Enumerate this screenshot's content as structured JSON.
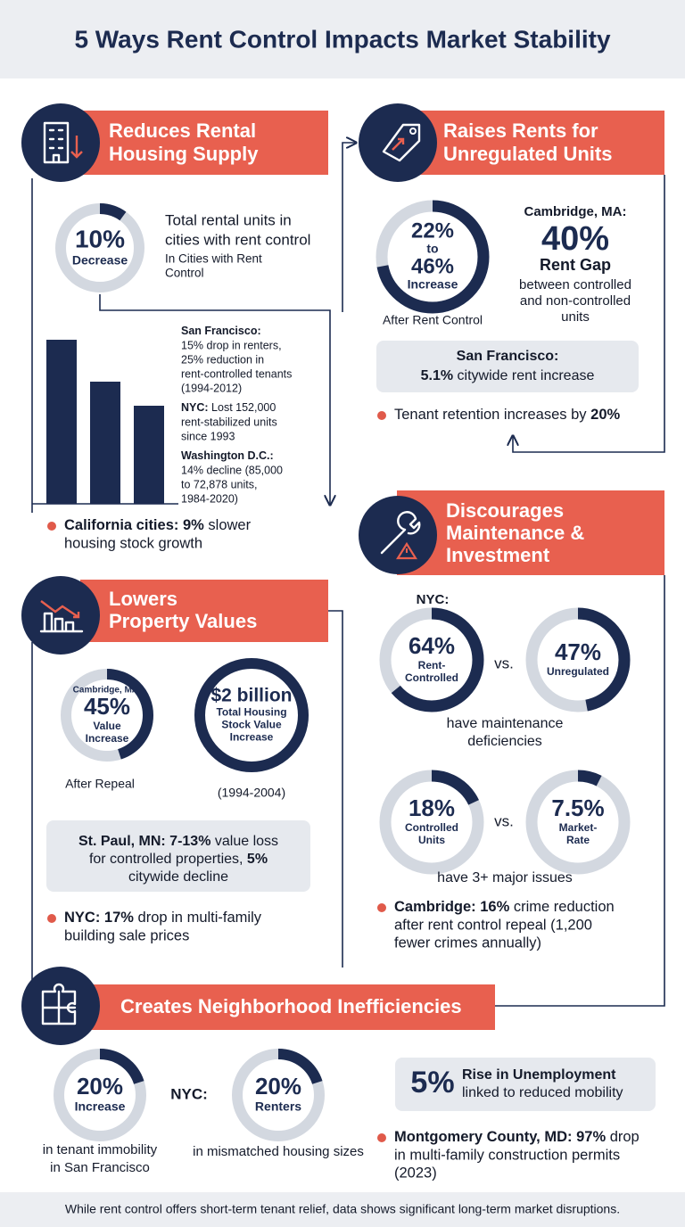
{
  "title": "5 Ways Rent Control Impacts Market Stability",
  "supply": {
    "heading": [
      "Reduces Rental",
      "Housing Supply"
    ],
    "ring": {
      "value": 10,
      "label": "10%",
      "caption": [
        "Decrease"
      ]
    },
    "note": [
      "Total rental units in",
      "cities with rent control"
    ],
    "subnote": [
      "In Cities with Rent",
      "Control"
    ],
    "facts": [
      [
        {
          "bold": "San Francisco:"
        },
        "15% drop in renters,",
        "25% reduction in",
        "rent-controlled tenants",
        "(1994-2012)"
      ],
      [
        {
          "bold": "NYC:",
          "rest": " Lost 152,000"
        },
        "rent-stabilized units",
        "since 1993"
      ],
      [
        {
          "bold": "Washington D.C.:"
        },
        "14% decline (85,000",
        "to 72,878 units,",
        "1984-2020)"
      ]
    ],
    "bullet": [
      {
        "bold": "California cities: 9%",
        "rest": " slower"
      },
      "housing stock growth"
    ]
  },
  "rents": {
    "heading": [
      "Raises Rents for",
      "Unregulated Units"
    ],
    "ring": {
      "range": [
        "22%",
        "to",
        "46%"
      ],
      "caption": [
        "Increase"
      ]
    },
    "ring_note": "After Rent Control",
    "city": "Cambridge, MA:",
    "stat": "40%",
    "stat_label": "Rent Gap",
    "stat_note": [
      "between controlled",
      "and non-controlled",
      "units"
    ],
    "box": [
      {
        "bold": "San Francisco:"
      },
      {
        "bold": "5.1%",
        "rest": " citywide rent increase"
      }
    ],
    "bullet": [
      {
        "lead": "Tenant retention increases by ",
        "bold": "20%"
      }
    ]
  },
  "maintenance": {
    "heading": [
      "Discourages",
      "Maintenance &",
      "Investment"
    ],
    "city": "NYC:",
    "pair1": [
      {
        "value": 64,
        "label": "64%",
        "caption": [
          "Rent-",
          "Controlled"
        ]
      },
      {
        "value": 47,
        "label": "47%",
        "caption": [
          "Unregulated"
        ]
      }
    ],
    "vs": "vs.",
    "pair1_note": [
      "have maintenance",
      "deficiencies"
    ],
    "pair2": [
      {
        "value": 18,
        "label": "18%",
        "caption": [
          "Controlled",
          "Units"
        ]
      },
      {
        "value": 7.5,
        "label": "7.5%",
        "caption": [
          "Market-",
          "Rate"
        ]
      }
    ],
    "pair2_note": "have 3+ major issues",
    "bullet": [
      {
        "bold": "Cambridge: 16%",
        "rest": " crime reduction"
      },
      "after rent control repeal (1,200",
      "fewer crimes annually)"
    ]
  },
  "values": {
    "heading": [
      "Lowers",
      "Property Values"
    ],
    "ring": {
      "value": 45,
      "top": "Cambridge, MA:",
      "label": "45%",
      "caption": [
        "Value",
        "Increase"
      ]
    },
    "ring_note": "After Repeal",
    "total": {
      "label": "$2 billion",
      "caption": [
        "Total Housing",
        "Stock Value",
        "Increase"
      ]
    },
    "total_note": "(1994-2004)",
    "box": [
      {
        "bold": "St. Paul, MN: 7-13%",
        "rest": " value loss"
      },
      {
        "lead": "for controlled properties, ",
        "bold": "5%"
      },
      "citywide decline"
    ],
    "bullet": [
      {
        "bold": "NYC: 17%",
        "rest": " drop in multi-family"
      },
      "building sale prices"
    ]
  },
  "inefficiencies": {
    "heading": [
      "Creates Neighborhood Inefficiencies"
    ],
    "ring1": {
      "value": 20,
      "label": "20%",
      "caption": [
        "Increase"
      ]
    },
    "ring1_note": [
      "in tenant immobility",
      "in San Francisco"
    ],
    "city": "NYC:",
    "ring2": {
      "value": 20,
      "label": "20%",
      "caption": [
        "Renters"
      ]
    },
    "ring2_note": "in mismatched housing sizes",
    "box_stat": "5%",
    "box_lines": [
      {
        "bold": "Rise in Unemployment"
      },
      "linked to reduced mobility"
    ],
    "bullet": [
      {
        "bold": "Montgomery County, MD: 97%",
        "rest": " drop"
      },
      "in multi-family construction permits",
      "(2023)"
    ]
  },
  "footer": "While rent control offers short-term tenant relief, data shows significant long-term market disruptions."
}
